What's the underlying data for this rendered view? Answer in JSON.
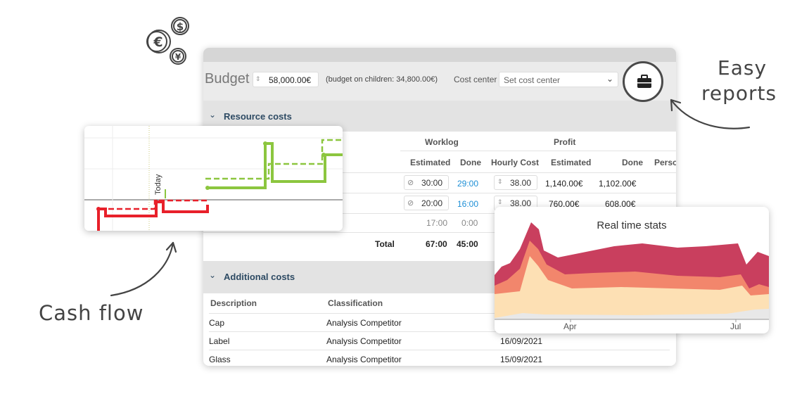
{
  "annotations": {
    "easy_reports": [
      "Easy",
      "reports"
    ],
    "cash_flow": "Cash flow"
  },
  "currency_icons": {
    "dollar": "$",
    "euro": "€",
    "yen": "¥"
  },
  "budget": {
    "title": "Budget",
    "amount": "58,000.00€",
    "children_note": "(budget on children: 34,800.00€)",
    "cost_center_label": "Cost center",
    "cost_center_placeholder": "Set cost center"
  },
  "resource_costs": {
    "title": "Resource costs",
    "group_headers": {
      "worklog": "Worklog",
      "profit": "Profit"
    },
    "columns": [
      "Estimated",
      "Done",
      "Hourly Cost",
      "Estimated",
      "Done",
      "Perso"
    ],
    "rows": [
      {
        "estimated": "30:00",
        "done": "29:00",
        "hourly_cost": "38.00",
        "profit_estimated": "1,140.00€",
        "profit_done": "1,102.00€"
      },
      {
        "estimated": "20:00",
        "done": "16:00",
        "hourly_cost": "38.00",
        "profit_estimated": "760.00€",
        "profit_done": "608.00€"
      }
    ],
    "extra_row": {
      "estimated": "17:00",
      "done": "0:00"
    },
    "total": {
      "label": "Total",
      "estimated": "67:00",
      "done": "45:00"
    }
  },
  "additional_costs": {
    "title": "Additional costs",
    "columns": [
      "Description",
      "Classification"
    ],
    "rows": [
      {
        "description": "Cap",
        "classification": "Analysis Competitor",
        "date": ""
      },
      {
        "description": "Label",
        "classification": "Analysis Competitor",
        "date": "16/09/2021"
      },
      {
        "description": "Glass",
        "classification": "Analysis Competitor",
        "date": "15/09/2021"
      }
    ]
  },
  "cash_flow_chart": {
    "today_label": "Today",
    "colors": {
      "negative": "#e8202a",
      "positive": "#8cc63f"
    }
  },
  "stats_chart": {
    "title": "Real time stats",
    "x_ticks": [
      "Apr",
      "Jul"
    ],
    "colors": {
      "top": "#c93f5e",
      "mid": "#f2866c",
      "low": "#fde0b4",
      "base": "#e8e8e8"
    }
  },
  "icons": {
    "report": "briefcase-icon"
  }
}
